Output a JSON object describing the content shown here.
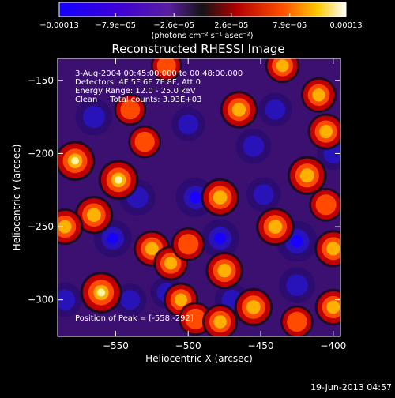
{
  "chart_data": {
    "type": "heatmap",
    "title": "Reconstructed RHESSI Image",
    "xlabel": "Heliocentric X (arcsec)",
    "ylabel": "Heliocentric Y (arcsec)",
    "xlim": [
      -590,
      -395
    ],
    "ylim": [
      -325,
      -135
    ],
    "xticks": [
      -550,
      -500,
      -450,
      -400
    ],
    "xtick_labels": [
      "−550",
      "−500",
      "−450",
      "−400"
    ],
    "yticks": [
      -150,
      -200,
      -250,
      -300
    ],
    "ytick_labels": [
      "−150",
      "−200",
      "−250",
      "−300"
    ],
    "colorbar": {
      "min": -0.00013,
      "max": 0.00013,
      "ticks": [
        -0.00013,
        -7.9e-05,
        -2.6e-05,
        2.6e-05,
        7.9e-05,
        0.00013
      ],
      "tick_labels": [
        "−0.00013",
        "−7.9e−05",
        "−2.6e−05",
        "2.6e−05",
        "7.9e−05",
        "0.00013"
      ],
      "unit_label": "(photons cm⁻² s⁻¹ asec⁻²)"
    },
    "annotations": [
      "3-Aug-2004 00:45:00.000 to 00:48:00.000",
      "Detectors: 4F 5F 6F 7F 8F, Att 0",
      "Energy Range: 12.0 - 25.0 keV",
      "Clean     Total counts: 3.93E+03"
    ],
    "peak_label": "Position of Peak = [-558,-292]",
    "peak_position": [
      -558,
      -292
    ],
    "hot_spots": [
      {
        "x": -560,
        "y": -295,
        "v": 1.0
      },
      {
        "x": -548,
        "y": -218,
        "v": 0.9
      },
      {
        "x": -565,
        "y": -242,
        "v": 0.8
      },
      {
        "x": -578,
        "y": -205,
        "v": 0.9
      },
      {
        "x": -585,
        "y": -250,
        "v": 0.7
      },
      {
        "x": -525,
        "y": -265,
        "v": 0.7
      },
      {
        "x": -512,
        "y": -275,
        "v": 0.6
      },
      {
        "x": -500,
        "y": -262,
        "v": 0.55
      },
      {
        "x": -505,
        "y": -300,
        "v": 0.6
      },
      {
        "x": -495,
        "y": -313,
        "v": 0.55
      },
      {
        "x": -530,
        "y": -192,
        "v": 0.5
      },
      {
        "x": -465,
        "y": -170,
        "v": 0.75
      },
      {
        "x": -478,
        "y": -230,
        "v": 0.8
      },
      {
        "x": -475,
        "y": -280,
        "v": 0.75
      },
      {
        "x": -455,
        "y": -305,
        "v": 0.8
      },
      {
        "x": -478,
        "y": -315,
        "v": 0.65
      },
      {
        "x": -440,
        "y": -250,
        "v": 0.8
      },
      {
        "x": -418,
        "y": -215,
        "v": 0.85
      },
      {
        "x": -405,
        "y": -185,
        "v": 0.7
      },
      {
        "x": -410,
        "y": -160,
        "v": 0.65
      },
      {
        "x": -435,
        "y": -140,
        "v": 0.6
      },
      {
        "x": -400,
        "y": -265,
        "v": 0.75
      },
      {
        "x": -400,
        "y": -305,
        "v": 0.7
      },
      {
        "x": -425,
        "y": -315,
        "v": 0.5
      },
      {
        "x": -405,
        "y": -235,
        "v": 0.55
      },
      {
        "x": -540,
        "y": -170,
        "v": 0.45
      },
      {
        "x": -515,
        "y": -140,
        "v": 0.4
      }
    ],
    "cold_spots": [
      {
        "x": -425,
        "y": -260,
        "v": 1.0
      },
      {
        "x": -478,
        "y": -258,
        "v": 0.85
      },
      {
        "x": -495,
        "y": -230,
        "v": 0.9
      },
      {
        "x": -552,
        "y": -258,
        "v": 0.8
      },
      {
        "x": -565,
        "y": -175,
        "v": 0.75
      },
      {
        "x": -535,
        "y": -230,
        "v": 0.7
      },
      {
        "x": -455,
        "y": -195,
        "v": 0.65
      },
      {
        "x": -448,
        "y": -228,
        "v": 0.6
      },
      {
        "x": -425,
        "y": -290,
        "v": 0.7
      },
      {
        "x": -500,
        "y": -180,
        "v": 0.55
      },
      {
        "x": -440,
        "y": -170,
        "v": 0.55
      },
      {
        "x": -585,
        "y": -300,
        "v": 0.6
      },
      {
        "x": -540,
        "y": -300,
        "v": 0.5
      },
      {
        "x": -470,
        "y": -300,
        "v": 0.55
      },
      {
        "x": -515,
        "y": -295,
        "v": 0.45
      },
      {
        "x": -400,
        "y": -200,
        "v": 0.5
      }
    ]
  },
  "timestamp": "19-Jun-2013 04:57"
}
